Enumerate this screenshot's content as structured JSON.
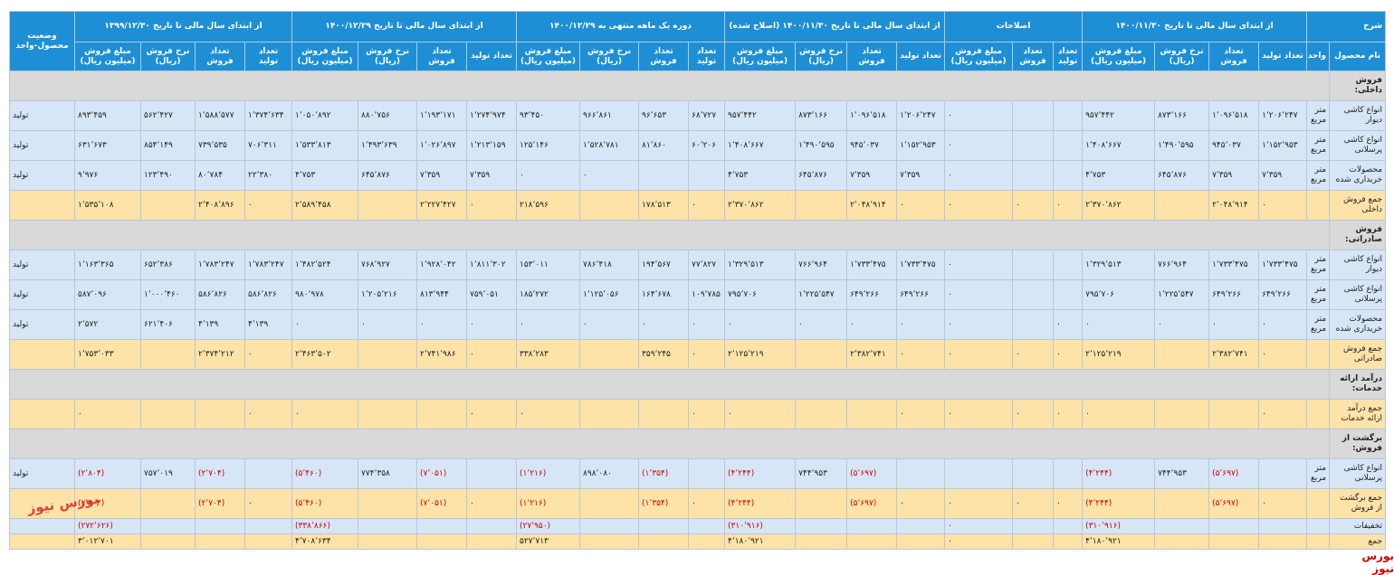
{
  "header": {
    "description": "شرح",
    "product_name": "نام محصول",
    "unit": "واحد",
    "status": "وضعیت محصول-واحد",
    "groups": [
      {
        "title": "از ابتدای سال مالی تا تاریخ ۱۴۰۰/۱۱/۳۰",
        "columns": [
          "تعداد تولید",
          "تعداد فروش",
          "نرخ فروش (ریال)",
          "مبلغ فروش (میلیون ریال)"
        ]
      },
      {
        "title": "اصلاحات",
        "columns": [
          "تعداد تولید",
          "تعداد فروش",
          "مبلغ فروش (میلیون ریال)"
        ]
      },
      {
        "title": "از ابتدای سال مالی تا تاریخ ۱۴۰۰/۱۱/۳۰ (اصلاح شده)",
        "columns": [
          "تعداد تولید",
          "تعداد فروش",
          "نرخ فروش (ریال)",
          "مبلغ فروش (میلیون ریال)"
        ]
      },
      {
        "title": "دوره یک ماهه منتهی به ۱۴۰۰/۱۲/۲۹",
        "columns": [
          "تعداد تولید",
          "تعداد فروش",
          "نرخ فروش (ریال)",
          "مبلغ فروش (میلیون ریال)"
        ]
      },
      {
        "title": "از ابتدای سال مالی تا تاریخ ۱۴۰۰/۱۲/۲۹",
        "columns": [
          "تعداد تولید",
          "تعداد فروش",
          "نرخ فروش (ریال)",
          "مبلغ فروش (میلیون ریال)"
        ]
      },
      {
        "title": "از ابتدای سال مالی تا تاریخ ۱۳۹۹/۱۲/۳۰",
        "columns": [
          "تعداد تولید",
          "تعداد فروش",
          "نرخ فروش (ریال)",
          "مبلغ فروش (میلیون ریال)"
        ]
      }
    ]
  },
  "table": {
    "rows": [
      [
        "فروش داخلی:"
      ],
      [
        "انواع کاشی دیوار",
        "متر مربع",
        "۱٬۲۰۶٬۲۴۷",
        "۱٬۰۹۶٬۵۱۸",
        "۸۷۳٬۱۶۶",
        "۹۵۷٬۴۴۲",
        null,
        null,
        "۰",
        "۱٬۲۰۶٬۲۴۷",
        "۱٬۰۹۶٬۵۱۸",
        "۸۷۳٬۱۶۶",
        "۹۵۷٬۴۴۲",
        "۶۸٬۷۲۷",
        "۹۶٬۶۵۳",
        "۹۶۶٬۸۶۱",
        "۹۳٬۴۵۰",
        "۱٬۲۷۴٬۹۷۴",
        "۱٬۱۹۳٬۱۷۱",
        "۸۸۰٬۷۵۶",
        "۱٬۰۵۰٬۸۹۲",
        "۱٬۳۷۴٬۶۳۴",
        "۱٬۵۸۸٬۵۷۷",
        "۵۶۲٬۴۲۷",
        "۸۹۳٬۴۵۹",
        "تولید"
      ],
      [
        "انواع کاشی پرسلانی",
        "متر مربع",
        "۱٬۱۵۲٬۹۵۳",
        "۹۴۵٬۰۳۷",
        "۱٬۴۹۰٬۵۹۵",
        "۱٬۴۰۸٬۶۶۷",
        null,
        null,
        "۰",
        "۱٬۱۵۲٬۹۵۳",
        "۹۴۵٬۰۳۷",
        "۱٬۴۹۰٬۵۹۵",
        "۱٬۴۰۸٬۶۶۷",
        "۶۰٬۲۰۶",
        "۸۱٬۸۶۰",
        "۱٬۵۲۸٬۷۸۱",
        "۱۲۵٬۱۴۶",
        "۱٬۲۱۳٬۱۵۹",
        "۱٬۰۲۶٬۸۹۷",
        "۱٬۴۹۳٬۶۳۹",
        "۱٬۵۳۳٬۸۱۳",
        "۷۰۶٬۳۱۱",
        "۷۳۹٬۵۳۵",
        "۸۵۴٬۱۴۹",
        "۶۳۱٬۶۷۳",
        "تولید"
      ],
      [
        "محصولات خریداری شده",
        "متر مربع",
        "۷٬۳۵۹",
        "۷٬۳۵۹",
        "۶۴۵٬۸۷۶",
        "۴٬۷۵۳",
        null,
        null,
        "۰",
        "۷٬۳۵۹",
        "۷٬۳۵۹",
        "۶۴۵٬۸۷۶",
        "۴٬۷۵۳",
        null,
        null,
        "۰",
        "۰",
        "۷٬۳۵۹",
        "۷٬۳۵۹",
        "۶۴۵٬۸۷۶",
        "۴٬۷۵۳",
        "۲۲٬۳۸۰",
        "۸۰٬۷۸۴",
        "۱۲۳٬۴۹۰",
        "۹٬۹۷۶",
        "تولید"
      ],
      [
        "جمع فروش داخلی",
        null,
        "۰",
        "۲٬۰۴۸٬۹۱۴",
        null,
        "۲٬۳۷۰٬۸۶۲",
        "۰",
        "۰",
        "۰",
        "۰",
        "۲٬۰۴۸٬۹۱۴",
        null,
        "۲٬۳۷۰٬۸۶۲",
        "۰",
        "۱۷۸٬۵۱۳",
        null,
        "۲۱۸٬۵۹۶",
        "۰",
        "۲٬۲۲۷٬۴۲۷",
        null,
        "۲٬۵۸۹٬۴۵۸",
        "۰",
        "۲٬۴۰۸٬۸۹۶",
        null,
        "۱٬۵۳۵٬۱۰۸",
        null
      ],
      [
        "فروش صادراتی:"
      ],
      [
        "انواع کاشی دیوار",
        "متر مربع",
        "۱٬۷۳۳٬۴۷۵",
        "۱٬۷۳۳٬۴۷۵",
        "۷۶۶٬۹۶۴",
        "۱٬۳۲۹٬۵۱۳",
        null,
        null,
        "۰",
        "۱٬۷۳۳٬۴۷۵",
        "۱٬۷۳۳٬۴۷۵",
        "۷۶۶٬۹۶۴",
        "۱٬۳۲۹٬۵۱۳",
        "۷۷٬۸۲۷",
        "۱۹۴٬۵۶۷",
        "۷۸۶٬۴۱۸",
        "۱۵۳٬۰۱۱",
        "۱٬۸۱۱٬۳۰۲",
        "۱٬۹۲۸٬۰۴۲",
        "۷۶۸٬۹۲۷",
        "۱٬۴۸۲٬۵۲۴",
        "۱٬۷۸۳٬۲۴۷",
        "۱٬۷۸۳٬۲۴۷",
        "۶۵۲٬۳۸۶",
        "۱٬۱۶۳٬۳۶۵",
        "تولید"
      ],
      [
        "انواع کاشی پرسلانی",
        "متر مربع",
        "۶۴۹٬۲۶۶",
        "۶۴۹٬۲۶۶",
        "۱٬۲۲۵٬۵۴۷",
        "۷۹۵٬۷۰۶",
        null,
        null,
        "۰",
        "۶۴۹٬۲۶۶",
        "۶۴۹٬۲۶۶",
        "۱٬۲۲۵٬۵۴۷",
        "۷۹۵٬۷۰۶",
        "۱۰۹٬۷۸۵",
        "۱۶۴٬۶۷۸",
        "۱٬۱۲۵٬۰۵۶",
        "۱۸۵٬۲۷۲",
        "۷۵۹٬۰۵۱",
        "۸۱۳٬۹۴۴",
        "۱٬۲۰۵٬۲۱۶",
        "۹۸۰٬۹۷۸",
        "۵۸۶٬۸۲۶",
        "۵۸۶٬۸۲۶",
        "۱٬۰۰۰٬۴۶۰",
        "۵۸۷٬۰۹۶",
        "تولید"
      ],
      [
        "محصولات خریداری شده",
        "متر مربع",
        "۰",
        "۰",
        "۰",
        "۰",
        "۰",
        null,
        "۰",
        "۰",
        "۰",
        "۰",
        "۰",
        "۰",
        "۰",
        "۰",
        "۰",
        "۰",
        "۰",
        "۰",
        "۰",
        "۴٬۱۳۹",
        "۴٬۱۳۹",
        "۶۲۱٬۴۰۶",
        "۲٬۵۷۲",
        "تولید"
      ],
      [
        "جمع فروش صادراتی",
        null,
        "۰",
        "۲٬۳۸۲٬۷۴۱",
        null,
        "۲٬۱۲۵٬۲۱۹",
        "۰",
        "۰",
        "۰",
        "۰",
        "۲٬۳۸۲٬۷۴۱",
        null,
        "۲٬۱۲۵٬۲۱۹",
        "۰",
        "۳۵۹٬۲۴۵",
        null,
        "۳۳۸٬۲۸۳",
        "۰",
        "۲٬۷۴۱٬۹۸۶",
        null,
        "۲٬۴۶۳٬۵۰۲",
        "۰",
        "۲٬۳۷۴٬۲۱۲",
        null,
        "۱٬۷۵۳٬۰۳۳",
        null
      ],
      [
        "درآمد ارائه خدمات:"
      ],
      [
        "جمع درآمد ارائه خدمات",
        null,
        "۰",
        null,
        null,
        "۰",
        "۰",
        "۰",
        "۰",
        "۰",
        null,
        null,
        "۰",
        "۰",
        null,
        null,
        "۰",
        "۰",
        null,
        null,
        "۰",
        "۰",
        null,
        null,
        "۰",
        null
      ],
      [
        "برگشت از فروش:"
      ],
      [
        "انواع کاشی پرسلانی",
        "متر مربع",
        null,
        "(۵٬۶۹۷)",
        "۷۴۴٬۹۵۳",
        "(۴٬۲۴۴)",
        null,
        null,
        null,
        null,
        "(۵٬۶۹۷)",
        "۷۴۴٬۹۵۳",
        "(۴٬۲۴۴)",
        null,
        "(۱٬۳۵۴)",
        "۸۹۸٬۰۸۰",
        "(۱٬۲۱۶)",
        null,
        "(۷٬۰۵۱)",
        "۷۷۴٬۳۵۸",
        "(۵٬۴۶۰)",
        null,
        "(۲٬۷۰۴)",
        "۷۵۷٬۰۱۹",
        "(۲٬۸۰۴)",
        "تولید"
      ],
      [
        "جمع برگشت از فروش",
        null,
        "۰",
        "(۵٬۶۹۷)",
        null,
        "(۴٬۲۴۴)",
        "۰",
        "۰",
        "۰",
        "۰",
        "(۵٬۶۹۷)",
        null,
        "(۴٬۲۴۴)",
        "۰",
        "(۱٬۳۵۴)",
        null,
        "(۱٬۲۱۶)",
        "۰",
        "(۷٬۰۵۱)",
        null,
        "(۵٬۴۶۰)",
        "۰",
        "(۲٬۷۰۴)",
        null,
        "(۲٬۸۰۴)",
        null
      ],
      [
        "تخفیفات",
        null,
        null,
        null,
        null,
        "(۳۱۰٬۹۱۶)",
        null,
        null,
        "۰",
        null,
        null,
        null,
        "(۳۱۰٬۹۱۶)",
        null,
        null,
        null,
        "(۲۷٬۹۵۰)",
        null,
        null,
        null,
        "(۳۳۸٬۸۶۶)",
        null,
        null,
        null,
        "(۲۷۲٬۶۲۶)",
        null
      ],
      [
        "جمع",
        null,
        null,
        null,
        null,
        "۴٬۱۸۰٬۹۲۱",
        null,
        null,
        "۰",
        null,
        null,
        null,
        "۴٬۱۸۰٬۹۲۱",
        null,
        null,
        null,
        "۵۲۷٬۷۱۳",
        null,
        null,
        null,
        "۴٬۷۰۸٬۶۳۴",
        null,
        null,
        null,
        "۳٬۰۱۲٬۷۰۱",
        null
      ]
    ]
  },
  "watermark": "بورس نیوز",
  "footer_brand": "بورس نیوز"
}
